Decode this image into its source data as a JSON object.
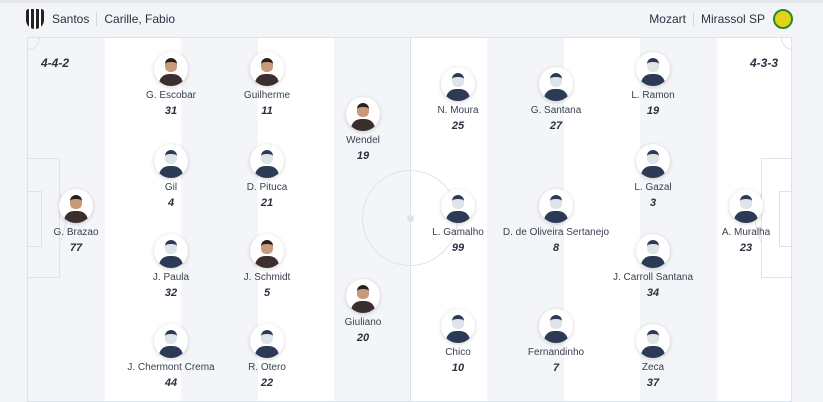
{
  "header": {
    "home": {
      "team": "Santos",
      "coach": "Carille, Fabio",
      "crest_icon": "santos-crest"
    },
    "away": {
      "team": "Mirassol SP",
      "coach": "Mozart",
      "crest_icon": "mirassol-crest"
    }
  },
  "home": {
    "formation": "4-4-2",
    "players": [
      {
        "name": "G. Brazao",
        "number": "77",
        "photo": true,
        "line": 0,
        "slot": 0
      },
      {
        "name": "G. Escobar",
        "number": "31",
        "photo": true,
        "line": 1,
        "slot": 0
      },
      {
        "name": "Gil",
        "number": "4",
        "photo": false,
        "line": 1,
        "slot": 1
      },
      {
        "name": "J. Paula",
        "number": "32",
        "photo": false,
        "line": 1,
        "slot": 2
      },
      {
        "name": "J. Chermont Crema",
        "number": "44",
        "photo": false,
        "line": 1,
        "slot": 3
      },
      {
        "name": "Guilherme",
        "number": "11",
        "photo": true,
        "line": 2,
        "slot": 0
      },
      {
        "name": "D. Pituca",
        "number": "21",
        "photo": false,
        "line": 2,
        "slot": 1
      },
      {
        "name": "J. Schmidt",
        "number": "5",
        "photo": true,
        "line": 2,
        "slot": 2
      },
      {
        "name": "R. Otero",
        "number": "22",
        "photo": false,
        "line": 2,
        "slot": 3
      },
      {
        "name": "Wendel",
        "number": "19",
        "photo": true,
        "line": 3,
        "slot": 0
      },
      {
        "name": "Giuliano",
        "number": "20",
        "photo": true,
        "line": 3,
        "slot": 1
      }
    ]
  },
  "away": {
    "formation": "4-3-3",
    "players": [
      {
        "name": "A. Muralha",
        "number": "23",
        "photo": false,
        "line": 0,
        "slot": 0
      },
      {
        "name": "L. Ramon",
        "number": "19",
        "photo": false,
        "line": 1,
        "slot": 0
      },
      {
        "name": "L. Gazal",
        "number": "3",
        "photo": false,
        "line": 1,
        "slot": 1
      },
      {
        "name": "J. Carroll Santana",
        "number": "34",
        "photo": false,
        "line": 1,
        "slot": 2
      },
      {
        "name": "Zeca",
        "number": "37",
        "photo": false,
        "line": 1,
        "slot": 3
      },
      {
        "name": "G. Santana",
        "number": "27",
        "photo": false,
        "line": 2,
        "slot": 0
      },
      {
        "name": "D. de Oliveira Sertanejo",
        "number": "8",
        "photo": false,
        "line": 2,
        "slot": 1
      },
      {
        "name": "Fernandinho",
        "number": "7",
        "photo": false,
        "line": 2,
        "slot": 2
      },
      {
        "name": "N. Moura",
        "number": "25",
        "photo": false,
        "line": 3,
        "slot": 0
      },
      {
        "name": "L. Gamalho",
        "number": "99",
        "photo": false,
        "line": 3,
        "slot": 1
      },
      {
        "name": "Chico",
        "number": "10",
        "photo": false,
        "line": 3,
        "slot": 2
      }
    ]
  }
}
